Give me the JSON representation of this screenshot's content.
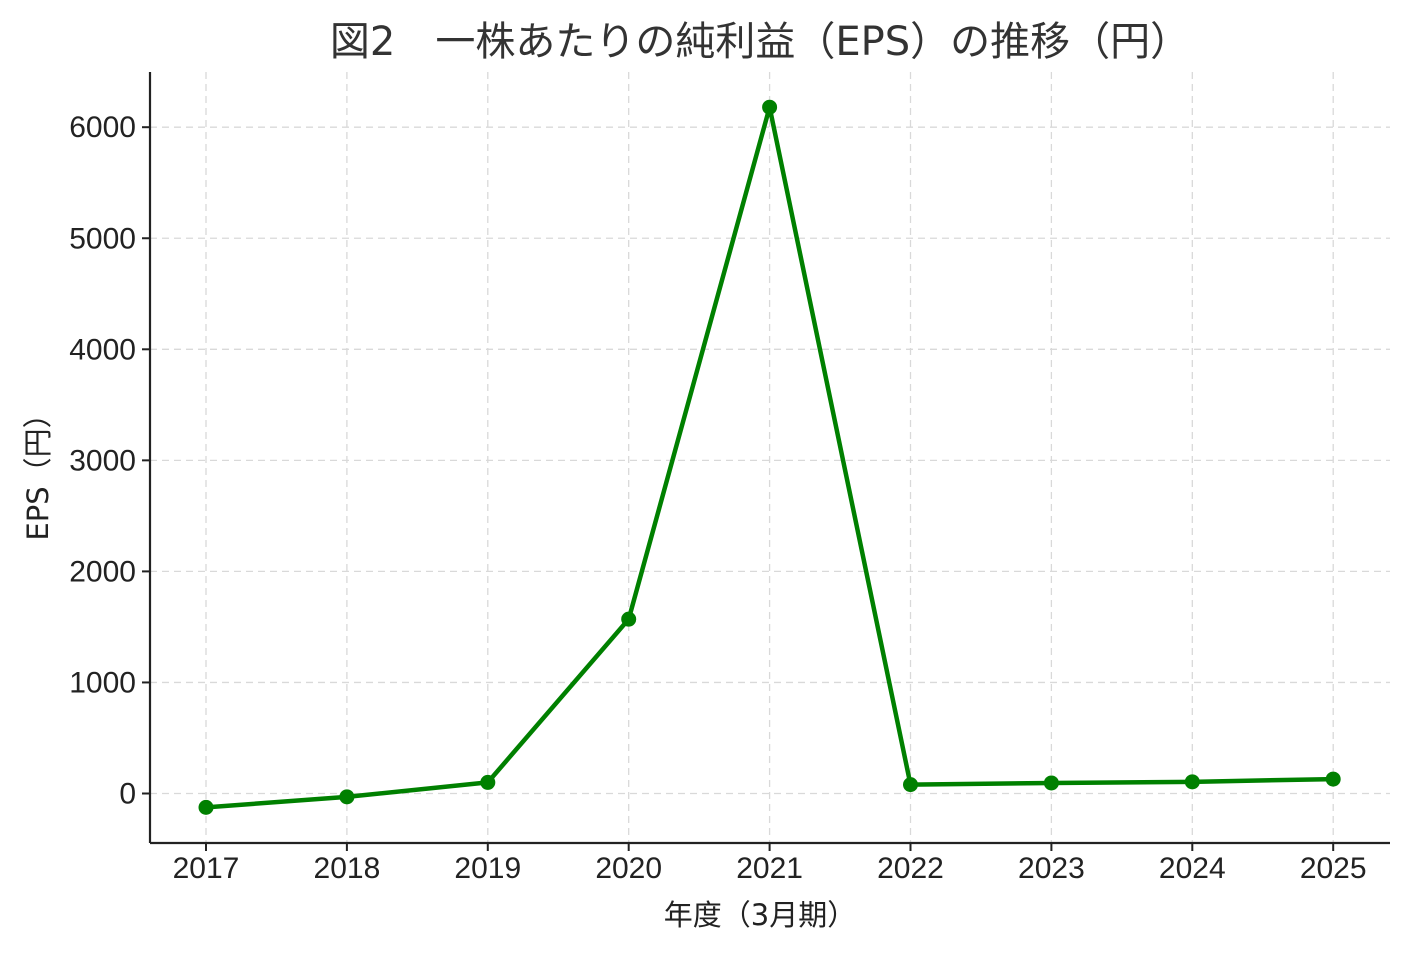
{
  "chart_data": {
    "type": "line",
    "title": "図2　一株あたりの純利益（EPS）の推移（円）",
    "xlabel": "年度（3月期）",
    "ylabel": "EPS（円）",
    "categories": [
      "2017",
      "2018",
      "2019",
      "2020",
      "2021",
      "2022",
      "2023",
      "2024",
      "2025"
    ],
    "series": [
      {
        "values": [
          -125,
          -30,
          100,
          1570,
          6180,
          80,
          95,
          105,
          130
        ],
        "color": "#008000"
      }
    ],
    "ylim": [
      -450,
      6500
    ],
    "yticks": [
      0,
      1000,
      2000,
      3000,
      4000,
      5000,
      6000
    ],
    "grid": true,
    "legend": "none"
  }
}
